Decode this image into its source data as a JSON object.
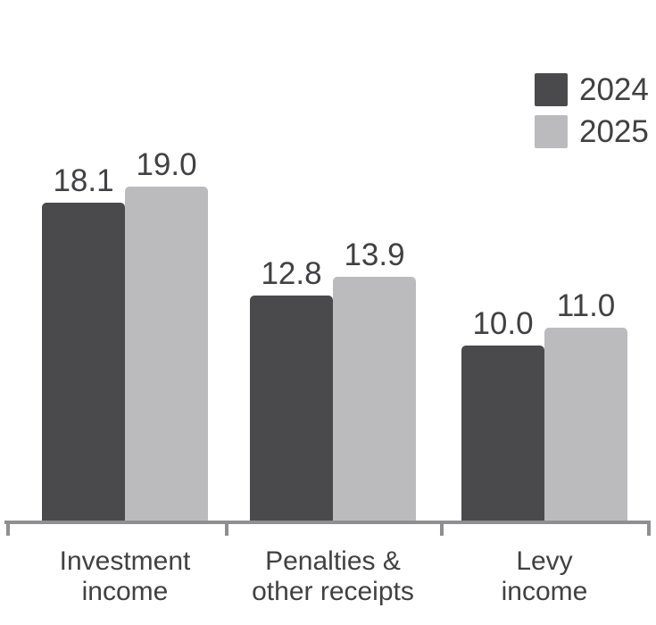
{
  "chart_data": {
    "type": "bar",
    "title": "",
    "xlabel": "",
    "ylabel": "",
    "categories": [
      "Investment\nincome",
      "Penalties &\nother receipts",
      "Levy\nincome"
    ],
    "series": [
      {
        "name": "2024",
        "color": "#4a4a4c",
        "values": [
          18.1,
          12.8,
          10.0
        ]
      },
      {
        "name": "2025",
        "color": "#bbbbbd",
        "values": [
          19.0,
          13.9,
          11.0
        ]
      }
    ],
    "value_labels": [
      [
        "18.1",
        "12.8",
        "10.0"
      ],
      [
        "19.0",
        "13.9",
        "11.0"
      ]
    ],
    "ylim": [
      0,
      20
    ],
    "grid": false,
    "y_axis_shown": false,
    "legend_position": "top-right",
    "axis_color": "#8f8f92",
    "text_color": "#414042",
    "background_color": "#ffffff"
  }
}
